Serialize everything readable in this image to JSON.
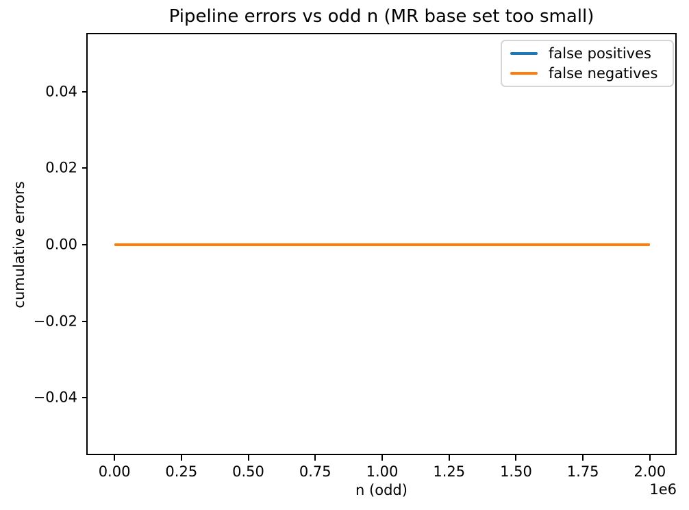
{
  "chart_data": {
    "type": "line",
    "title": "Pipeline errors vs odd n (MR base set too small)",
    "xlabel": "n (odd)",
    "ylabel": "cumulative errors",
    "x_offset_text": "1e6",
    "xlim": [
      -100000,
      2100000
    ],
    "ylim": [
      -0.055,
      0.055
    ],
    "grid": false,
    "x_ticks": {
      "values": [
        0,
        250000,
        500000,
        750000,
        1000000,
        1250000,
        1500000,
        1750000,
        2000000
      ],
      "labels": [
        "0.00",
        "0.25",
        "0.50",
        "0.75",
        "1.00",
        "1.25",
        "1.50",
        "1.75",
        "2.00"
      ]
    },
    "y_ticks": {
      "values": [
        0.04,
        0.02,
        0,
        -0.02,
        -0.04
      ],
      "labels": [
        "0.04",
        "0.02",
        "0.00",
        "−0.02",
        "−0.04"
      ]
    },
    "legend": {
      "position": "upper right",
      "entries": [
        "false positives",
        "false negatives"
      ]
    },
    "series": [
      {
        "name": "false positives",
        "color": "#1f77b4",
        "x": [
          0,
          2000000
        ],
        "y": [
          0,
          0
        ]
      },
      {
        "name": "false negatives",
        "color": "#ff7f0e",
        "x": [
          0,
          2000000
        ],
        "y": [
          0,
          0
        ]
      }
    ],
    "colors": {
      "spine": "#000000",
      "text": "#000000",
      "legend_border": "#d5d5d5",
      "background": "#ffffff"
    }
  }
}
